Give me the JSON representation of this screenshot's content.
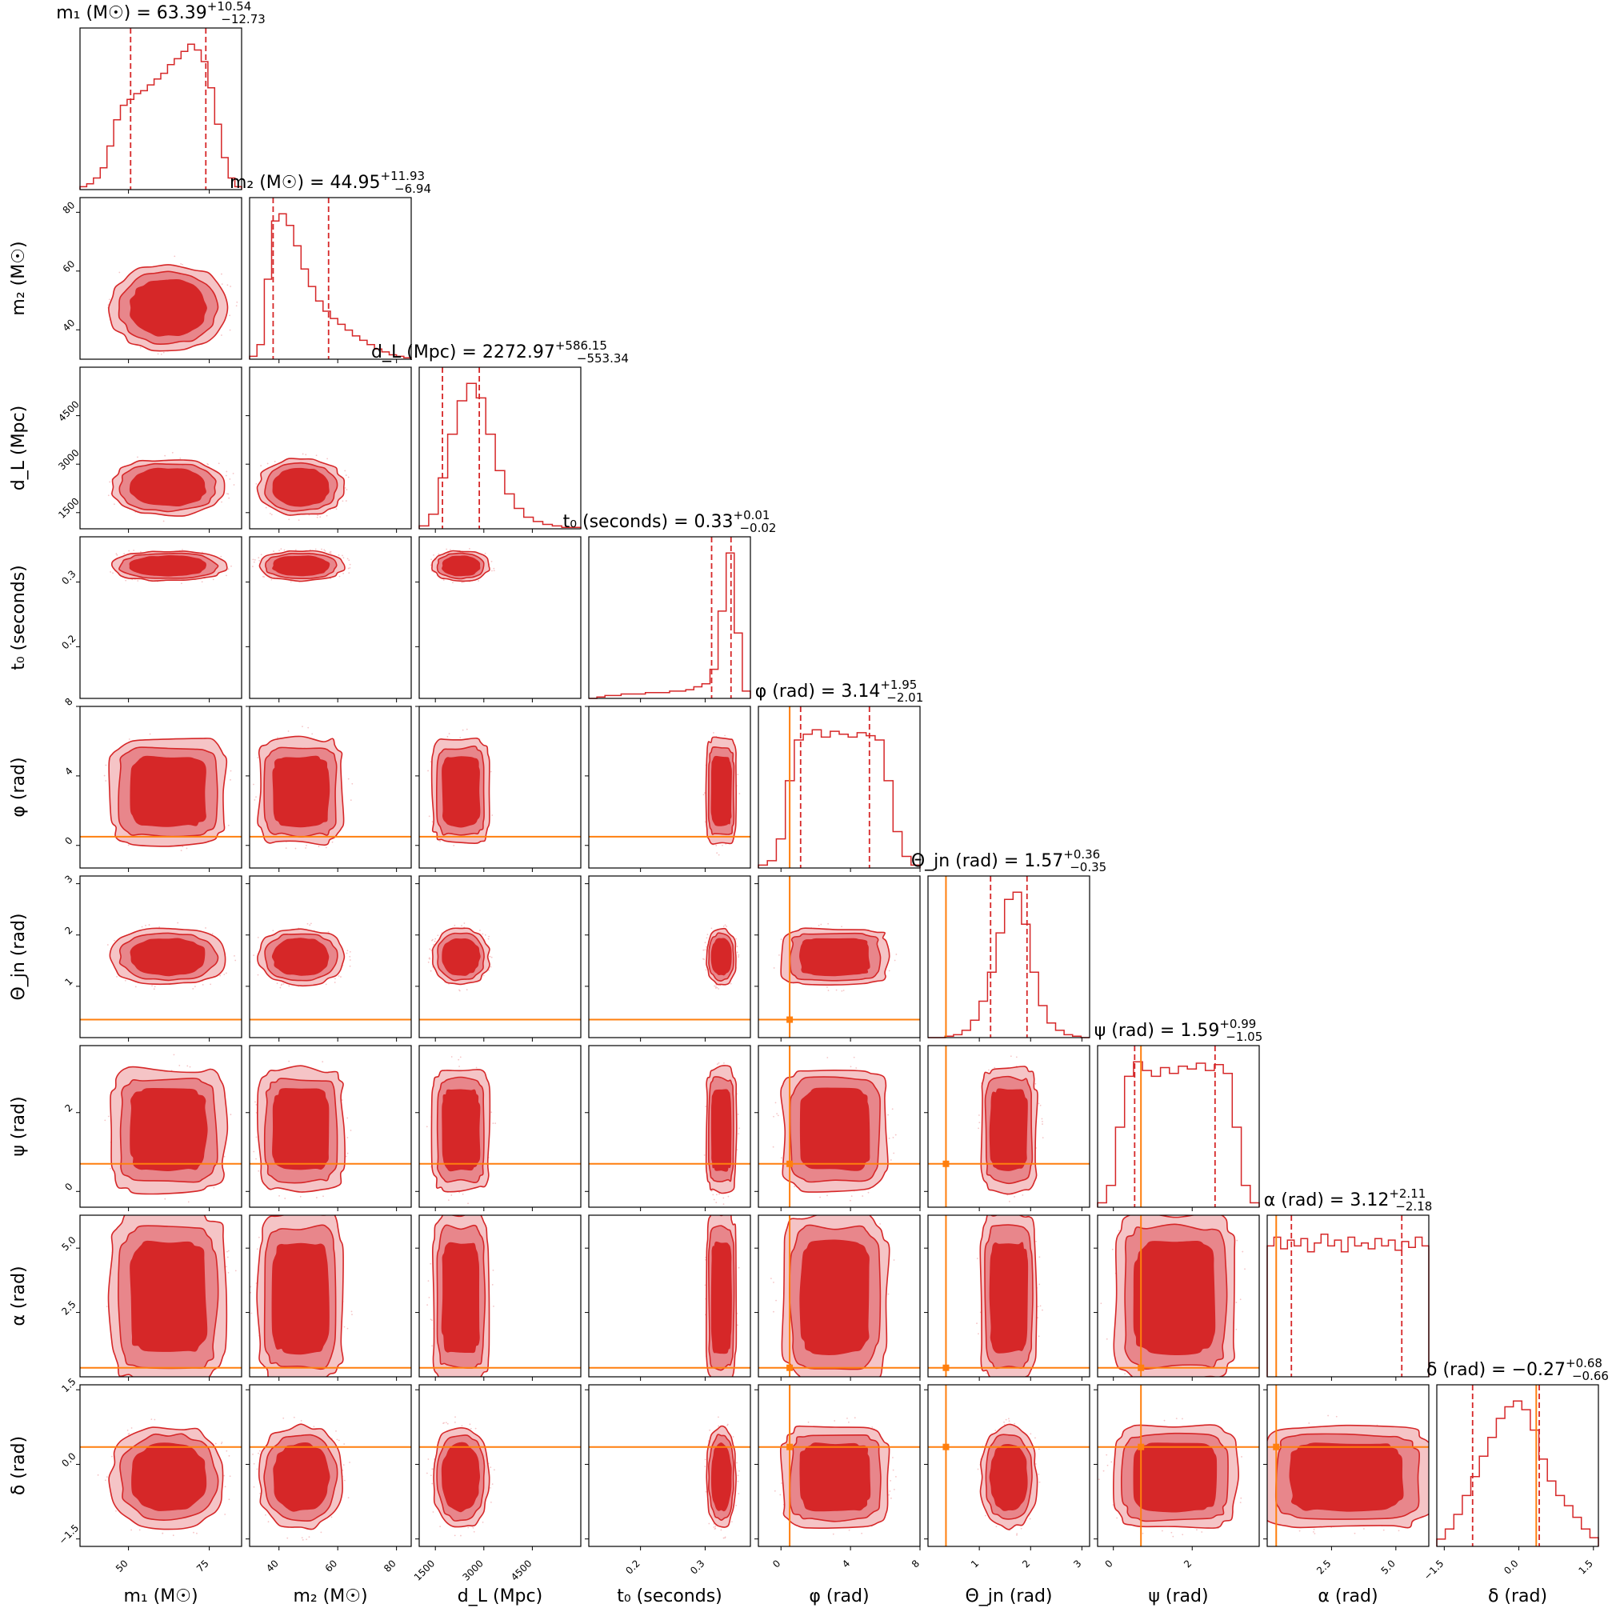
{
  "chart_data": {
    "type": "corner",
    "colors": {
      "posterior": "#d62728",
      "contour_inner": "#d62728",
      "contour_mid": "#e8868b",
      "contour_outer": "#f5c4c6",
      "truth": "#ff7f0e",
      "frame": "#000000"
    },
    "parameters": [
      {
        "key": "m1",
        "axis_label": "m₁ (M☉)",
        "title_lhs": "m₁ (M☉) = ",
        "median": "63.39",
        "upper": "+10.54",
        "lower": "−12.73",
        "range": [
          35,
          85
        ],
        "ticks": [
          50,
          75
        ],
        "tick_labels": [
          "50",
          "75"
        ],
        "quantiles": [
          50.66,
          73.93
        ],
        "truth": null,
        "hist": [
          0.02,
          0.04,
          0.08,
          0.15,
          0.3,
          0.48,
          0.58,
          0.62,
          0.66,
          0.68,
          0.72,
          0.76,
          0.8,
          0.86,
          0.9,
          0.95,
          1.0,
          0.96,
          0.88,
          0.7,
          0.45,
          0.22,
          0.08,
          0.02
        ]
      },
      {
        "key": "m2",
        "axis_label": "m₂ (M☉)",
        "title_lhs": "m₂ (M☉) = ",
        "median": "44.95",
        "upper": "+11.93",
        "lower": "−6.94",
        "range": [
          30,
          85
        ],
        "ticks": [
          40,
          60,
          80
        ],
        "tick_labels": [
          "40",
          "60",
          "80"
        ],
        "quantiles": [
          38.01,
          56.88
        ],
        "truth": null,
        "hist": [
          0.02,
          0.1,
          0.55,
          0.95,
          1.0,
          0.92,
          0.78,
          0.62,
          0.5,
          0.4,
          0.33,
          0.28,
          0.24,
          0.2,
          0.16,
          0.13,
          0.1,
          0.07,
          0.05,
          0.03,
          0.02,
          0.01
        ]
      },
      {
        "key": "dL",
        "axis_label": "d_L (Mpc)",
        "title_lhs": "d_L (Mpc) = ",
        "median": "2272.97",
        "upper": "+586.15",
        "lower": "−553.34",
        "range": [
          1000,
          6000
        ],
        "ticks": [
          1500,
          3000,
          4500
        ],
        "tick_labels": [
          "1500",
          "3000",
          "4500"
        ],
        "quantiles": [
          1719.63,
          2859.12
        ],
        "truth": null,
        "hist": [
          0.02,
          0.1,
          0.35,
          0.65,
          0.88,
          1.0,
          0.9,
          0.65,
          0.4,
          0.24,
          0.14,
          0.08,
          0.05,
          0.03,
          0.02,
          0.01,
          0.01
        ]
      },
      {
        "key": "t0",
        "axis_label": "t₀ (seconds)",
        "title_lhs": "t₀ (seconds) = ",
        "median": "0.33",
        "upper": "+0.01",
        "lower": "−0.02",
        "range": [
          0.12,
          0.37
        ],
        "ticks": [
          0.2,
          0.3
        ],
        "tick_labels": [
          "0.2",
          "0.3"
        ],
        "quantiles": [
          0.31,
          0.34
        ],
        "truth": null,
        "hist": [
          0.0,
          0.01,
          0.02,
          0.02,
          0.03,
          0.03,
          0.03,
          0.04,
          0.04,
          0.04,
          0.05,
          0.05,
          0.06,
          0.08,
          0.1,
          0.2,
          0.6,
          1.0,
          0.45,
          0.05
        ]
      },
      {
        "key": "phi",
        "axis_label": "φ (rad)",
        "title_lhs": "φ (rad) = ",
        "median": "3.14",
        "upper": "+1.95",
        "lower": "−2.01",
        "range": [
          -1.3,
          8.0
        ],
        "ticks": [
          0,
          4,
          8
        ],
        "tick_labels": [
          "0",
          "4",
          "8"
        ],
        "quantiles": [
          1.13,
          5.09
        ],
        "truth": 0.5,
        "hist": [
          0.02,
          0.05,
          0.2,
          0.6,
          0.88,
          0.92,
          0.95,
          0.9,
          0.94,
          0.92,
          0.9,
          0.93,
          0.91,
          0.88,
          0.6,
          0.25,
          0.08,
          0.02
        ]
      },
      {
        "key": "theta",
        "axis_label": "Θ_jn (rad)",
        "title_lhs": "Θ_jn (rad) = ",
        "median": "1.57",
        "upper": "+0.36",
        "lower": "−0.35",
        "range": [
          0.0,
          3.15
        ],
        "ticks": [
          1,
          2,
          3
        ],
        "tick_labels": [
          "1",
          "2",
          "3"
        ],
        "quantiles": [
          1.22,
          1.93
        ],
        "truth": 0.35,
        "hist": [
          0.0,
          0.0,
          0.01,
          0.02,
          0.05,
          0.12,
          0.25,
          0.45,
          0.72,
          0.95,
          1.0,
          0.78,
          0.45,
          0.22,
          0.1,
          0.05,
          0.02,
          0.01,
          0.0
        ]
      },
      {
        "key": "psi",
        "axis_label": "ψ (rad)",
        "title_lhs": "ψ (rad) = ",
        "median": "1.59",
        "upper": "+0.99",
        "lower": "−1.05",
        "range": [
          -0.4,
          3.7
        ],
        "ticks": [
          0,
          2
        ],
        "tick_labels": [
          "0",
          "2"
        ],
        "quantiles": [
          0.54,
          2.58
        ],
        "truth": 0.7,
        "hist": [
          0.03,
          0.15,
          0.55,
          0.9,
          1.0,
          0.94,
          0.9,
          0.96,
          0.92,
          0.97,
          0.95,
          0.99,
          0.94,
          0.98,
          0.92,
          0.55,
          0.15,
          0.03
        ]
      },
      {
        "key": "alpha",
        "axis_label": "α (rad)",
        "title_lhs": "α (rad) = ",
        "median": "3.12",
        "upper": "+2.11",
        "lower": "−2.18",
        "range": [
          0.0,
          6.28
        ],
        "ticks": [
          2.5,
          5.0
        ],
        "tick_labels": [
          "2.5",
          "5.0"
        ],
        "quantiles": [
          0.94,
          5.23
        ],
        "truth": 0.35,
        "hist": [
          0.9,
          0.96,
          0.88,
          0.94,
          0.9,
          0.95,
          0.86,
          0.92,
          0.98,
          0.9,
          0.94,
          0.86,
          0.96,
          0.9,
          0.92,
          0.88,
          0.95,
          0.9,
          0.94,
          0.87,
          0.93,
          0.89,
          0.96,
          0.9
        ]
      },
      {
        "key": "delta",
        "axis_label": "δ (rad)",
        "title_lhs": "δ (rad) = ",
        "median": "−0.27",
        "upper": "+0.68",
        "lower": "−0.66",
        "range": [
          -1.65,
          1.6
        ],
        "ticks": [
          -1.5,
          0.0,
          1.5
        ],
        "tick_labels": [
          "−1.5",
          "0.0",
          "1.5"
        ],
        "quantiles": [
          -0.93,
          0.41
        ],
        "truth": 0.35,
        "hist": [
          0.05,
          0.12,
          0.22,
          0.35,
          0.48,
          0.62,
          0.75,
          0.88,
          0.96,
          1.0,
          0.94,
          0.8,
          0.6,
          0.45,
          0.35,
          0.28,
          0.2,
          0.12,
          0.06
        ]
      }
    ]
  }
}
